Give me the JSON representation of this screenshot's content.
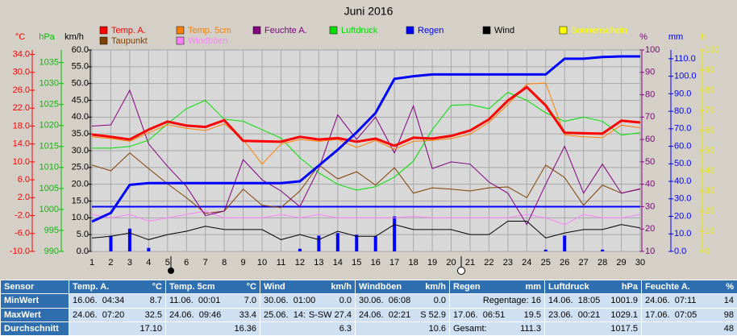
{
  "chart_data": {
    "type": "line",
    "title": "Juni 2016",
    "x": [
      1,
      2,
      3,
      4,
      5,
      6,
      7,
      8,
      9,
      10,
      11,
      12,
      13,
      14,
      15,
      16,
      17,
      18,
      19,
      20,
      21,
      22,
      23,
      24,
      25,
      26,
      27,
      28,
      29,
      30
    ],
    "xlim": [
      1,
      30
    ],
    "grid": true,
    "axes": {
      "y": {
        "label": "°C",
        "color": "#ff0000",
        "lim": [
          -10,
          35
        ],
        "ticks": [
          {
            "value": -10,
            "label": "-10.0"
          },
          {
            "value": -6,
            "label": "-6.0"
          },
          {
            "value": -2,
            "label": "-2.0"
          },
          {
            "value": 2,
            "label": "2.0"
          },
          {
            "value": 6,
            "label": "6.0"
          },
          {
            "value": 10,
            "label": "10.0"
          },
          {
            "value": 14,
            "label": "14.0"
          },
          {
            "value": 18,
            "label": "18.0"
          },
          {
            "value": 22,
            "label": "22.0"
          },
          {
            "value": 26,
            "label": "26.0"
          },
          {
            "value": 30,
            "label": "30.0"
          },
          {
            "value": 34,
            "label": "34.0"
          }
        ]
      },
      "y2": {
        "label": "hPa",
        "color": "#00c000",
        "lim": [
          990,
          1038
        ],
        "ticks": [
          990,
          995,
          1000,
          1005,
          1010,
          1015,
          1020,
          1025,
          1030,
          1035
        ]
      },
      "y3": {
        "label": "km/h",
        "color": "#000000",
        "lim": [
          0,
          60
        ],
        "ticks": [
          {
            "value": 0,
            "label": "0.0"
          },
          {
            "value": 5,
            "label": "5.0"
          },
          {
            "value": 10,
            "label": "10.0"
          },
          {
            "value": 15,
            "label": "15.0"
          },
          {
            "value": 20,
            "label": "20.0"
          },
          {
            "value": 25,
            "label": "25.0"
          },
          {
            "value": 30,
            "label": "30.0"
          },
          {
            "value": 35,
            "label": "35.0"
          },
          {
            "value": 40,
            "label": "40.0"
          },
          {
            "value": 45,
            "label": "45.0"
          },
          {
            "value": 50,
            "label": "50.0"
          },
          {
            "value": 55,
            "label": "55.0"
          },
          {
            "value": 60,
            "label": "60.0"
          }
        ]
      },
      "y4": {
        "label": "%",
        "color": "#800080",
        "lim": [
          10,
          100
        ],
        "ticks": [
          10,
          20,
          30,
          40,
          50,
          60,
          70,
          80,
          90,
          100
        ]
      },
      "y5": {
        "label": "mm",
        "color": "#0000ff",
        "lim": [
          0,
          115
        ],
        "ticks": [
          {
            "value": 0,
            "label": "0.0"
          },
          {
            "value": 10,
            "label": "10.0"
          },
          {
            "value": 20,
            "label": "20.0"
          },
          {
            "value": 30,
            "label": "30.0"
          },
          {
            "value": 40,
            "label": "40.0"
          },
          {
            "value": 50,
            "label": "50.0"
          },
          {
            "value": 60,
            "label": "60.0"
          },
          {
            "value": 70,
            "label": "70.0"
          },
          {
            "value": 80,
            "label": "80.0"
          },
          {
            "value": 90,
            "label": "90.0"
          },
          {
            "value": 100,
            "label": "100.0"
          },
          {
            "value": 110,
            "label": "110.0"
          }
        ]
      },
      "y6": {
        "label": "h",
        "color": "#e8e800",
        "lim": [
          0,
          100
        ],
        "ticks": [
          0,
          10,
          20,
          30,
          40,
          50,
          60,
          70,
          80,
          90,
          100
        ]
      }
    },
    "series": [
      {
        "name": "Temp. A.",
        "color": "#ff0000",
        "axis": "y",
        "width": 3,
        "values": [
          16.1,
          15.6,
          15,
          17.2,
          19,
          18.1,
          17.8,
          19.3,
          14.7,
          14.6,
          14.5,
          15.6,
          15,
          15.3,
          14.5,
          15.2,
          13.6,
          15.4,
          15.2,
          15.8,
          17,
          19.5,
          23.7,
          26.7,
          22.6,
          16.5,
          16.4,
          16.3,
          19.2,
          18.8
        ]
      },
      {
        "name": "Temp. 5cm",
        "color": "#ff8000",
        "axis": "y",
        "width": 1,
        "values": [
          15.6,
          15.2,
          14.6,
          16.5,
          18.3,
          17.5,
          17,
          18.5,
          15,
          9.5,
          14,
          15,
          14.6,
          15,
          13.2,
          14.8,
          12.8,
          14.6,
          14.8,
          15.2,
          16.2,
          18.8,
          22.8,
          27.4,
          27.6,
          16,
          15.6,
          15.4,
          18.2,
          17.6
        ]
      },
      {
        "name": "Feuchte A.",
        "color": "#800080",
        "axis": "y4",
        "width": 1,
        "values": [
          66,
          66.5,
          82,
          58,
          48,
          39,
          26,
          28,
          51,
          42,
          37,
          30,
          47,
          71,
          60,
          70,
          54,
          75,
          47,
          50,
          49,
          41,
          36,
          22,
          40,
          57,
          36,
          49,
          36,
          38
        ]
      },
      {
        "name": "Luftdruck",
        "color": "#00e000",
        "axis": "y2",
        "width": 1,
        "values": [
          1014.6,
          1014.6,
          1015,
          1016.5,
          1020.4,
          1024,
          1026,
          1021.5,
          1021,
          1019,
          1017,
          1012.3,
          1008.7,
          1006,
          1004.6,
          1005.4,
          1007.7,
          1011.5,
          1019,
          1024.8,
          1025,
          1024,
          1027.9,
          1026,
          1023,
          1021,
          1022,
          1021,
          1017.7,
          1018.3
        ]
      },
      {
        "name": "Regen",
        "color": "#0000ff",
        "axis": "y5",
        "width": 3,
        "values": [
          17,
          22,
          38,
          39,
          39,
          39,
          39,
          39,
          39,
          39,
          39,
          40,
          49,
          58,
          68,
          79,
          98.5,
          100,
          101,
          101,
          101,
          101,
          101,
          101,
          101,
          110,
          110,
          111,
          111.3,
          111.3
        ]
      },
      {
        "name": "Wind",
        "color": "#000000",
        "axis": "y3",
        "width": 1,
        "values": [
          4,
          4.5,
          5.5,
          3.5,
          5,
          6,
          7.5,
          6.5,
          6.5,
          6.5,
          3.5,
          5,
          3.5,
          6,
          4.5,
          4.5,
          8,
          6.5,
          6.5,
          6.5,
          5,
          5,
          9,
          9,
          4,
          5.5,
          6.5,
          6.5,
          8,
          7
        ]
      },
      {
        "name": "Sonnenschein",
        "color": "#ffff00",
        "axis": "y6",
        "width": 1,
        "values": [
          null,
          null,
          null,
          null,
          null,
          null,
          null,
          null,
          null,
          null,
          null,
          null,
          null,
          null,
          null,
          null,
          null,
          null,
          null,
          null,
          null,
          null,
          null,
          null,
          null,
          null,
          null,
          null,
          null,
          null
        ]
      },
      {
        "name": "Taupunkt",
        "color": "#804000",
        "axis": "y",
        "width": 1,
        "values": [
          9.3,
          8,
          12,
          8.5,
          5.1,
          2,
          -1.5,
          -1,
          3.9,
          0.3,
          -0.2,
          3.5,
          9.3,
          6.2,
          7.8,
          4.8,
          8.7,
          3,
          4.2,
          3.9,
          3.5,
          4.2,
          4.4,
          2,
          9.3,
          6.5,
          0.3,
          4.8,
          3,
          3.9
        ]
      },
      {
        "name": "Windböen",
        "color": "#ff80ff",
        "axis": "y3",
        "width": 1,
        "values": [
          11,
          10,
          11,
          9,
          10,
          11,
          12,
          10,
          10,
          10,
          11,
          10,
          11,
          10,
          10,
          10,
          10,
          10.5,
          10,
          10,
          10,
          10,
          10,
          11,
          10,
          8,
          11,
          10,
          10,
          11
        ]
      }
    ],
    "rain_bars": {
      "color": "#0000ff",
      "axis": "y5",
      "values": [
        0,
        9,
        13,
        2,
        0,
        0,
        0,
        0,
        0,
        0,
        0,
        1.5,
        9,
        10.5,
        9.5,
        8.7,
        20,
        0,
        0,
        0,
        0,
        0,
        0,
        0,
        1,
        9,
        0,
        1,
        0,
        0
      ]
    }
  },
  "table": {
    "header": [
      [
        "Sensor"
      ],
      [
        "Temp. A.",
        "°C"
      ],
      [
        "Temp. 5cm",
        "°C"
      ],
      [
        "Wind",
        "km/h"
      ],
      [
        "Windböen",
        "km/h"
      ],
      [
        "Regen",
        "mm"
      ],
      [
        "Luftdruck",
        "hPa"
      ],
      [
        "Feuchte A.",
        "%"
      ]
    ],
    "rows": [
      [
        [
          "MinWert"
        ],
        [
          "16.06.  04:34",
          "8.7"
        ],
        [
          "11.06.  00:01",
          "7.0"
        ],
        [
          "30.06.  01:00",
          "0.0"
        ],
        [
          "30.06.  06:08",
          "0.0"
        ],
        [
          "Regentage: 16"
        ],
        [
          "14.06.  18:05",
          "1001.9"
        ],
        [
          "24.06.  07:11",
          "14"
        ]
      ],
      [
        [
          "MaxWert"
        ],
        [
          "24.06.  07:20",
          "32.5"
        ],
        [
          "24.06.  09:46",
          "33.4"
        ],
        [
          "25.06.  14:",
          "S-SW 27.4"
        ],
        [
          "24.06.  02:21",
          "S 52.9"
        ],
        [
          "17.06.  06:51",
          "19.5"
        ],
        [
          "23.06.  00:21",
          "1029.1"
        ],
        [
          "17.06.  07:05",
          "98"
        ]
      ],
      [
        [
          "Durchschnitt"
        ],
        [
          "17.10"
        ],
        [
          "16.36"
        ],
        [
          "6.3"
        ],
        [
          "10.6"
        ],
        [
          "Gesamt:",
          "111.3"
        ],
        [
          "1017.5"
        ],
        [
          "48"
        ]
      ]
    ]
  }
}
